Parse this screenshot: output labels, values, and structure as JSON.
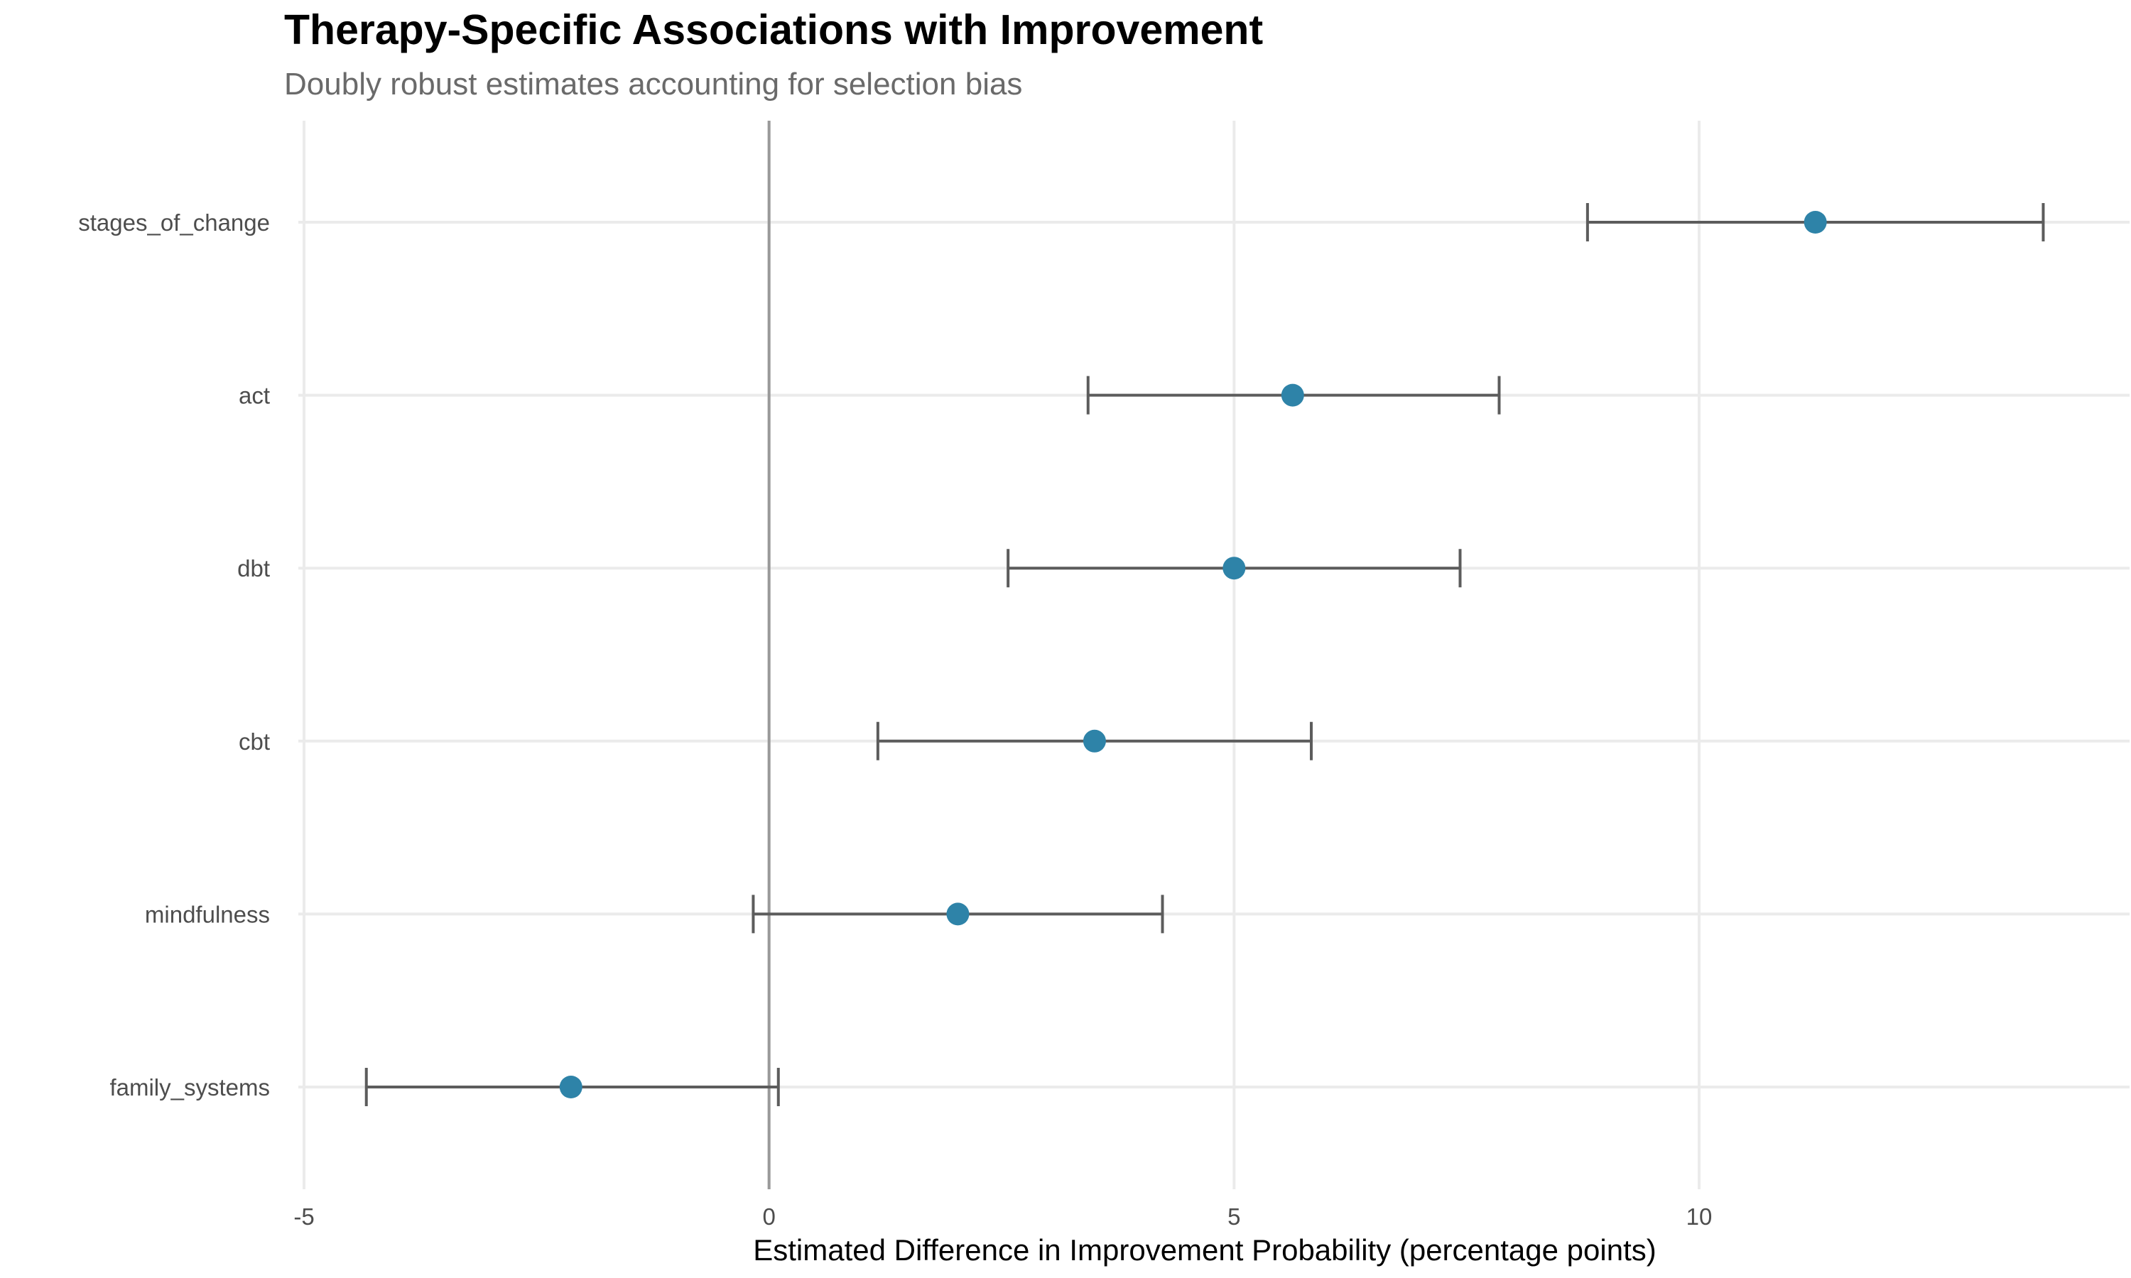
{
  "chart_data": {
    "type": "forest",
    "title": "Therapy-Specific Associations with Improvement",
    "subtitle": "Doubly robust estimates accounting for selection bias",
    "xlabel": "Estimated Difference in Improvement Probability (percentage points)",
    "ylabel": "",
    "xlim": [
      -5,
      14.2
    ],
    "x_ticks": [
      -5,
      0,
      5,
      10
    ],
    "x_tick_labels": [
      "-5",
      "0",
      "5",
      "10"
    ],
    "reference_line": 0,
    "grid": true,
    "point_color": "#2e83a8",
    "errorbar_color": "#5c5c5c",
    "categories": [
      "stages_of_change",
      "act",
      "dbt",
      "cbt",
      "mindfulness",
      "family_systems"
    ],
    "estimates": [
      11.25,
      5.63,
      5.0,
      3.5,
      2.03,
      -2.13
    ],
    "ci_low": [
      8.8,
      3.43,
      2.57,
      1.17,
      -0.17,
      -4.33
    ],
    "ci_high": [
      13.7,
      7.85,
      7.43,
      5.83,
      4.23,
      0.1
    ]
  }
}
